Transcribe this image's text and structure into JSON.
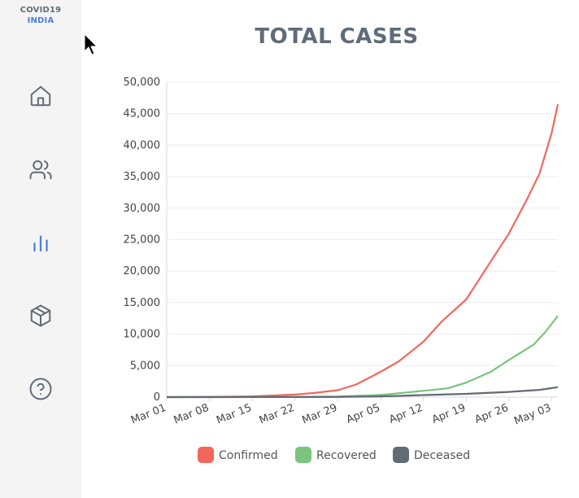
{
  "brand": {
    "line1": "COVID19",
    "line2": "INDIA"
  },
  "sidebar": {
    "items": [
      {
        "name": "home-icon",
        "active": false
      },
      {
        "name": "users-icon",
        "active": false
      },
      {
        "name": "bar-chart-icon",
        "active": true
      },
      {
        "name": "box-icon",
        "active": false
      },
      {
        "name": "help-icon",
        "active": false
      }
    ]
  },
  "colors": {
    "confirmed": "#f2675c",
    "recovered": "#7bc47c",
    "deceased": "#626b75",
    "accent": "#4a7ee3"
  },
  "chart_data": {
    "type": "line",
    "title": "TOTAL CASES",
    "ylim": [
      0,
      50000
    ],
    "yticks": [
      0,
      5000,
      10000,
      15000,
      20000,
      25000,
      30000,
      35000,
      40000,
      45000,
      50000
    ],
    "ytick_labels": [
      "0",
      "5,000",
      "10,000",
      "15,000",
      "20,000",
      "25,000",
      "30,000",
      "35,000",
      "40,000",
      "45,000",
      "50,000"
    ],
    "x_tick_labels": [
      "Mar 01",
      "Mar 08",
      "Mar 15",
      "Mar 22",
      "Mar 29",
      "Apr 05",
      "Apr 12",
      "Apr 19",
      "Apr 26",
      "May 03"
    ],
    "x_tick_dates": [
      "2020-03-01",
      "2020-03-08",
      "2020-03-15",
      "2020-03-22",
      "2020-03-29",
      "2020-04-05",
      "2020-04-12",
      "2020-04-19",
      "2020-04-26",
      "2020-05-03"
    ],
    "xlim": [
      "2020-03-01",
      "2020-05-04"
    ],
    "grid": true,
    "legend_position": "bottom",
    "series": [
      {
        "name": "Confirmed",
        "color": "#f2675c",
        "points": [
          [
            "2020-03-01",
            3
          ],
          [
            "2020-03-08",
            40
          ],
          [
            "2020-03-15",
            110
          ],
          [
            "2020-03-22",
            400
          ],
          [
            "2020-03-25",
            650
          ],
          [
            "2020-03-29",
            1100
          ],
          [
            "2020-04-01",
            2000
          ],
          [
            "2020-04-05",
            4000
          ],
          [
            "2020-04-08",
            5700
          ],
          [
            "2020-04-12",
            8800
          ],
          [
            "2020-04-15",
            12000
          ],
          [
            "2020-04-19",
            15500
          ],
          [
            "2020-04-22",
            20000
          ],
          [
            "2020-04-26",
            26000
          ],
          [
            "2020-04-29",
            31500
          ],
          [
            "2020-05-01",
            35500
          ],
          [
            "2020-05-03",
            42000
          ],
          [
            "2020-05-04",
            46500
          ]
        ]
      },
      {
        "name": "Recovered",
        "color": "#7bc47c",
        "points": [
          [
            "2020-03-01",
            3
          ],
          [
            "2020-03-22",
            25
          ],
          [
            "2020-03-29",
            100
          ],
          [
            "2020-04-05",
            330
          ],
          [
            "2020-04-12",
            1000
          ],
          [
            "2020-04-16",
            1400
          ],
          [
            "2020-04-19",
            2300
          ],
          [
            "2020-04-23",
            4000
          ],
          [
            "2020-04-26",
            5900
          ],
          [
            "2020-04-30",
            8300
          ],
          [
            "2020-05-02",
            10400
          ],
          [
            "2020-05-04",
            12900
          ]
        ]
      },
      {
        "name": "Deceased",
        "color": "#626b75",
        "points": [
          [
            "2020-03-01",
            0
          ],
          [
            "2020-03-22",
            7
          ],
          [
            "2020-03-29",
            30
          ],
          [
            "2020-04-05",
            110
          ],
          [
            "2020-04-12",
            320
          ],
          [
            "2020-04-19",
            520
          ],
          [
            "2020-04-26",
            830
          ],
          [
            "2020-05-01",
            1150
          ],
          [
            "2020-05-04",
            1570
          ]
        ]
      }
    ]
  }
}
